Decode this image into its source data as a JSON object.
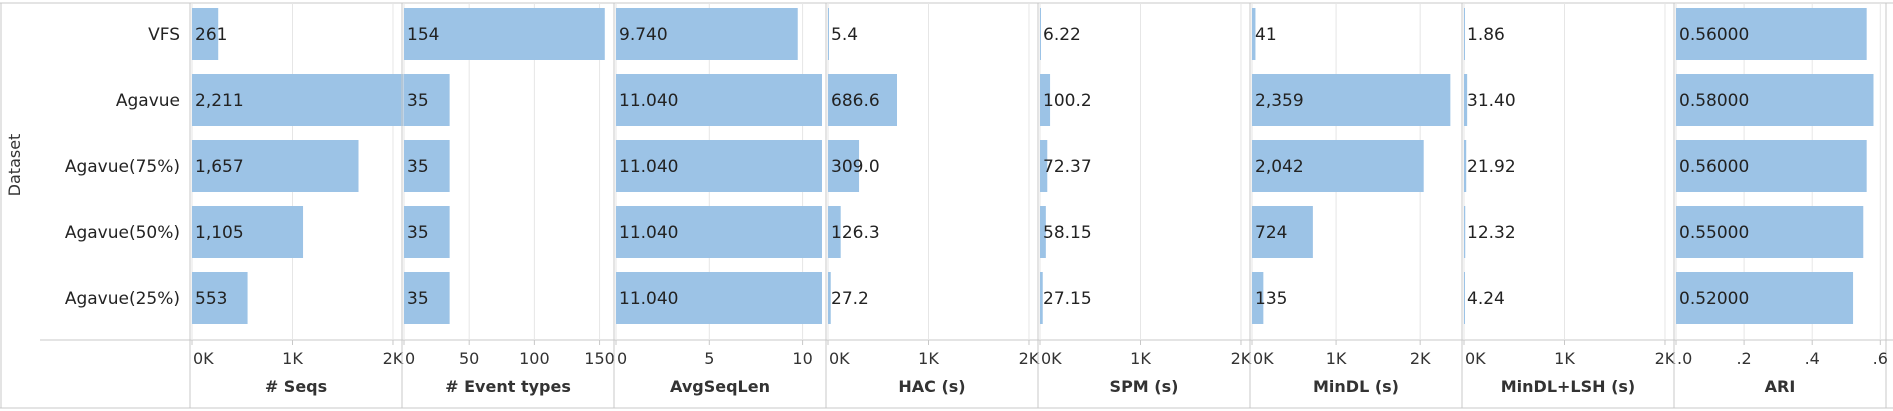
{
  "colors": {
    "bar": "#9cc3e6",
    "grid": "#c8c8c8",
    "text": "#222222"
  },
  "row_axis_title": "Dataset",
  "chart_data": {
    "type": "bar",
    "orientation": "horizontal",
    "categories": [
      "VFS",
      "Agavue",
      "Agavue(75%)",
      "Agavue(50%)",
      "Agavue(25%)"
    ],
    "panels": [
      {
        "title": "# Seqs",
        "min": 0,
        "max": 2050,
        "ticks": [
          {
            "v": 0,
            "label": "0K"
          },
          {
            "v": 1000,
            "label": "1K"
          },
          {
            "v": 2000,
            "label": "2K"
          }
        ],
        "values": [
          261,
          2211,
          1657,
          1105,
          553
        ],
        "labels": [
          "261",
          "2,211",
          "1,657",
          "1,105",
          "553"
        ]
      },
      {
        "title": "# Event types",
        "min": 0,
        "max": 158,
        "ticks": [
          {
            "v": 0,
            "label": "0"
          },
          {
            "v": 50,
            "label": "50"
          },
          {
            "v": 100,
            "label": "100"
          },
          {
            "v": 150,
            "label": "150"
          }
        ],
        "values": [
          154,
          35,
          35,
          35,
          35
        ],
        "labels": [
          "154",
          "35",
          "35",
          "35",
          "35"
        ]
      },
      {
        "title": "AvgSeqLen",
        "min": 0,
        "max": 11.04,
        "ticks": [
          {
            "v": 0,
            "label": "0"
          },
          {
            "v": 5,
            "label": "5"
          },
          {
            "v": 10,
            "label": "10"
          }
        ],
        "values": [
          9.74,
          11.04,
          11.04,
          11.04,
          11.04
        ],
        "labels": [
          "9.740",
          "11.040",
          "11.040",
          "11.040",
          "11.040"
        ]
      },
      {
        "title": "HAC (s)",
        "min": 0,
        "max": 2050,
        "ticks": [
          {
            "v": 0,
            "label": "0K"
          },
          {
            "v": 1000,
            "label": "1K"
          },
          {
            "v": 2000,
            "label": "2K"
          }
        ],
        "values": [
          5.4,
          686.6,
          309.0,
          126.3,
          27.2
        ],
        "labels": [
          "5.4",
          "686.6",
          "309.0",
          "126.3",
          "27.2"
        ]
      },
      {
        "title": "SPM  (s)",
        "min": 0,
        "max": 2050,
        "ticks": [
          {
            "v": 0,
            "label": "0K"
          },
          {
            "v": 1000,
            "label": "1K"
          },
          {
            "v": 2000,
            "label": "2K"
          }
        ],
        "values": [
          6.22,
          100.2,
          72.37,
          58.15,
          27.15
        ],
        "labels": [
          "6.22",
          "100.2",
          "72.37",
          "58.15",
          "27.15"
        ]
      },
      {
        "title": "MinDL (s)",
        "min": 0,
        "max": 2450,
        "ticks": [
          {
            "v": 0,
            "label": "0K"
          },
          {
            "v": 1000,
            "label": "1K"
          },
          {
            "v": 2000,
            "label": "2K"
          }
        ],
        "values": [
          41,
          2359,
          2042,
          724,
          135
        ],
        "labels": [
          "41",
          "2,359",
          "2,042",
          "724",
          "135"
        ]
      },
      {
        "title": "MinDL+LSH (s)",
        "min": 0,
        "max": 2050,
        "ticks": [
          {
            "v": 0,
            "label": "0K"
          },
          {
            "v": 1000,
            "label": "1K"
          },
          {
            "v": 2000,
            "label": "2K"
          }
        ],
        "values": [
          1.86,
          31.4,
          21.92,
          12.32,
          4.24
        ],
        "labels": [
          "1.86",
          "31.40",
          "21.92",
          "12.32",
          "4.24"
        ]
      },
      {
        "title": "ARI",
        "min": 0,
        "max": 0.605,
        "ticks": [
          {
            "v": 0,
            "label": ".0"
          },
          {
            "v": 0.2,
            "label": ".2"
          },
          {
            "v": 0.4,
            "label": ".4"
          },
          {
            "v": 0.6,
            "label": ".6"
          }
        ],
        "values": [
          0.56,
          0.58,
          0.56,
          0.55,
          0.52
        ],
        "labels": [
          "0.56000",
          "0.58000",
          "0.56000",
          "0.55000",
          "0.52000"
        ]
      }
    ]
  }
}
